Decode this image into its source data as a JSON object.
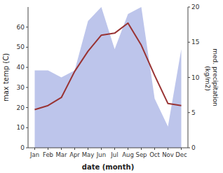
{
  "chart_data": {
    "type": "line",
    "x_label": "date (month)",
    "y_label": "max temp (C)",
    "y2_label": "med. precipitation\n (kg/m2)",
    "categories": [
      "Jan",
      "Feb",
      "Mar",
      "Apr",
      "May",
      "Jun",
      "Jul",
      "Aug",
      "Sep",
      "Oct",
      "Nov",
      "Dec"
    ],
    "series": [
      {
        "type": "area",
        "axis": "y2",
        "color": "#bdc5eb",
        "values": [
          11,
          11,
          10,
          11,
          18,
          20,
          14,
          19,
          20,
          7,
          3,
          14
        ]
      },
      {
        "type": "line",
        "color": "#993333",
        "values": [
          19,
          21,
          25,
          38,
          48,
          56,
          57,
          62,
          51,
          36,
          22,
          21
        ]
      }
    ],
    "ylim": [
      0,
      70
    ],
    "yticks": [
      0,
      10,
      20,
      30,
      40,
      50,
      60
    ],
    "y2lim": [
      0,
      20
    ],
    "y2ticks": [
      0,
      5,
      10,
      15,
      20
    ],
    "grid": false
  }
}
